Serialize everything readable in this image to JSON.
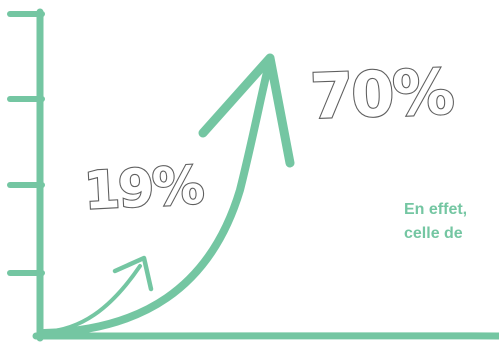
{
  "chart_data": {
    "type": "line",
    "values": [
      "19%",
      "70%"
    ],
    "accent_color": "#74c6a2"
  },
  "caption": {
    "line1": "En effet,",
    "line2": "celle de"
  }
}
